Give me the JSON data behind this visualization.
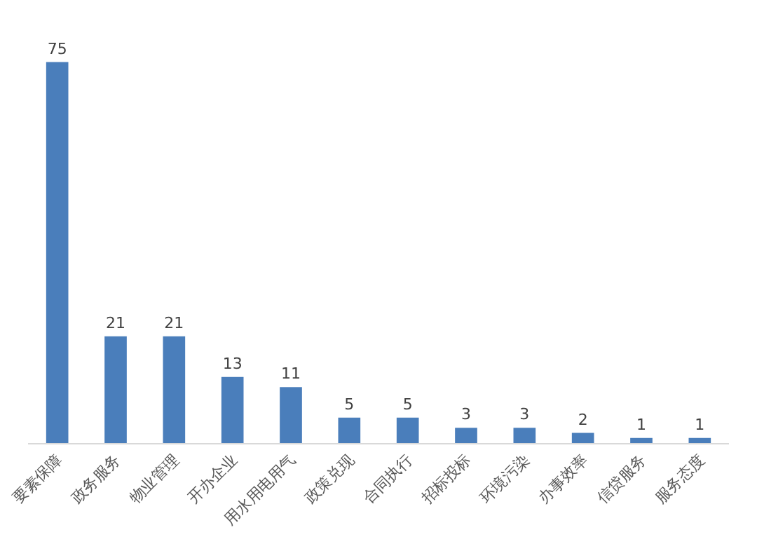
{
  "chart_data": {
    "type": "bar",
    "categories": [
      "要素保障",
      "政务服务",
      "物业管理",
      "开办企业",
      "用水用电用气",
      "政策兑现",
      "合同执行",
      "招标投标",
      "环境污染",
      "办事效率",
      "信贷服务",
      "服务态度"
    ],
    "values": [
      75,
      21,
      21,
      13,
      11,
      5,
      5,
      3,
      3,
      2,
      1,
      1
    ],
    "color": "#4a7ebb",
    "data_labels": true
  }
}
